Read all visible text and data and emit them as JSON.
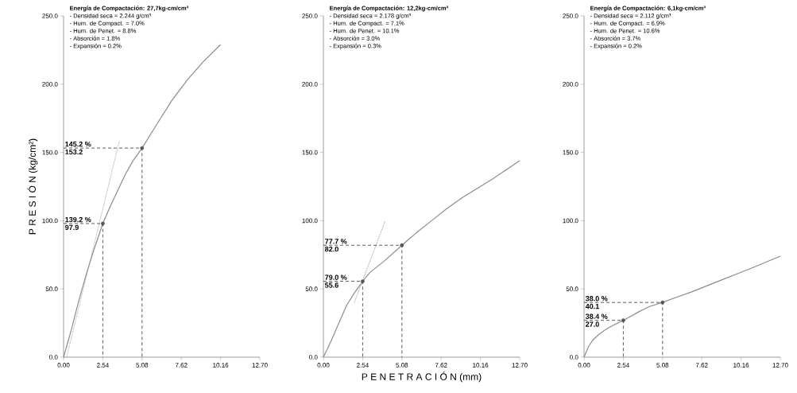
{
  "chart_data": [
    {
      "type": "line",
      "title": "Energía de Compactación: 27,7kg-cm/cm³",
      "ylabel": "P R E S I Ó N   (kg/cm²)",
      "xlim": [
        0,
        12.7
      ],
      "ylim": [
        0,
        250
      ],
      "xticks": [
        {
          "value": 0,
          "label": "0.00"
        },
        {
          "value": 2.54,
          "label": "2.54"
        },
        {
          "value": 5.08,
          "label": "5.08"
        },
        {
          "value": 7.62,
          "label": "7.62"
        },
        {
          "value": 10.16,
          "label": "10.16"
        },
        {
          "value": 12.7,
          "label": "12.70"
        }
      ],
      "yticks": [
        {
          "value": 0,
          "label": "0.0"
        },
        {
          "value": 50,
          "label": "50.0"
        },
        {
          "value": 100,
          "label": "100.0"
        },
        {
          "value": 150,
          "label": "150.0"
        },
        {
          "value": 200,
          "label": "200.0"
        },
        {
          "value": 250,
          "label": "250.0"
        }
      ],
      "grid": false,
      "series": [
        {
          "type": "line",
          "color": "#8c8c8c",
          "line_style": "solid",
          "x": [
            0,
            0.5,
            1,
            1.5,
            2,
            2.54,
            3,
            3.5,
            4,
            4.5,
            5.08,
            6,
            7,
            8,
            9,
            10.16
          ],
          "values": [
            0,
            20,
            42,
            62,
            80,
            97.9,
            110,
            122,
            134,
            144,
            153.2,
            170,
            188,
            203,
            216,
            229
          ]
        },
        {
          "type": "line",
          "color": "#a0a0a0",
          "line_style": "dotted",
          "x": [
            0.2,
            3.6
          ],
          "values": [
            0,
            158
          ]
        },
        {
          "type": "line",
          "color": "#333333",
          "line_style": "dashed",
          "x": [
            0,
            2.54,
            2.54
          ],
          "values": [
            97.9,
            97.9,
            0
          ]
        },
        {
          "type": "line",
          "color": "#333333",
          "line_style": "dashed",
          "x": [
            0,
            5.08,
            5.08
          ],
          "values": [
            153.2,
            153.2,
            0
          ]
        },
        {
          "type": "scatter",
          "color": "#555555",
          "marker": "circle",
          "x": [
            2.54,
            5.08
          ],
          "values": [
            97.9,
            153.2
          ]
        }
      ],
      "annotations": [
        "- Densidad seca = 2.244 g/cm³",
        "- Hum. de Compact. = 7.0%",
        "- Hum. de Penet. = 8.8%",
        "- Absorción = 1.8%",
        "- Expansión = 0.2%",
        {
          "text": "145.2 %",
          "y": 153.2
        },
        {
          "text": "153.2",
          "y": 153.2
        },
        {
          "text": "139.2 %",
          "y": 97.9
        },
        {
          "text": "97.9",
          "y": 97.9
        }
      ]
    },
    {
      "type": "line",
      "title": "Energía de Compactación: 12,2kg-cm/cm³",
      "xlabel": "P E N E T R A C I Ó N   (mm)",
      "xlim": [
        0,
        12.7
      ],
      "ylim": [
        0,
        250
      ],
      "xticks": [
        {
          "value": 0,
          "label": "0.00"
        },
        {
          "value": 2.54,
          "label": "2.54"
        },
        {
          "value": 5.08,
          "label": "5.08"
        },
        {
          "value": 7.62,
          "label": "7.62"
        },
        {
          "value": 10.16,
          "label": "10.16"
        },
        {
          "value": 12.7,
          "label": "12.70"
        }
      ],
      "yticks": [
        {
          "value": 0,
          "label": "0.0"
        },
        {
          "value": 50,
          "label": "50.0"
        },
        {
          "value": 100,
          "label": "100.0"
        },
        {
          "value": 150,
          "label": "150.0"
        },
        {
          "value": 200,
          "label": "200.0"
        },
        {
          "value": 250,
          "label": "250.0"
        }
      ],
      "grid": false,
      "series": [
        {
          "type": "line",
          "color": "#8c8c8c",
          "line_style": "solid",
          "x": [
            0,
            0.5,
            1,
            1.5,
            2,
            2.54,
            3,
            4,
            5.08,
            6,
            7,
            8,
            9,
            10,
            11,
            12.7
          ],
          "values": [
            0,
            12,
            25,
            38,
            47,
            55.6,
            62,
            71,
            82,
            91,
            100,
            109,
            117,
            124,
            131,
            144
          ]
        },
        {
          "type": "line",
          "color": "#8a8a8a",
          "line_style": "dotted",
          "x": [
            2.0,
            4.0
          ],
          "values": [
            40,
            100
          ]
        },
        {
          "type": "line",
          "color": "#333333",
          "line_style": "dashed",
          "x": [
            0,
            2.54,
            2.54
          ],
          "values": [
            55.6,
            55.6,
            0
          ]
        },
        {
          "type": "line",
          "color": "#333333",
          "line_style": "dashed",
          "x": [
            0,
            5.08,
            5.08
          ],
          "values": [
            82.0,
            82.0,
            0
          ]
        },
        {
          "type": "scatter",
          "color": "#555555",
          "marker": "circle",
          "x": [
            2.54,
            5.08
          ],
          "values": [
            55.6,
            82.0
          ]
        }
      ],
      "annotations": [
        "- Densidad seca = 2.178 g/cm³",
        "- Hum. de Compact. = 7.1%",
        "- Hum. de Penet. = 10.1%",
        "- Absorción = 3.0%",
        "- Expansión = 0.3%",
        {
          "text": "77.7 %",
          "y": 82.0
        },
        {
          "text": "82.0",
          "y": 82.0
        },
        {
          "text": "79.0 %",
          "y": 55.6
        },
        {
          "text": "55.6",
          "y": 55.6
        }
      ]
    },
    {
      "type": "line",
      "title": "Energía de Compactación: 6,1kg-cm/cm³",
      "xlim": [
        0,
        12.7
      ],
      "ylim": [
        0,
        250
      ],
      "xticks": [
        {
          "value": 0,
          "label": "0.00"
        },
        {
          "value": 2.54,
          "label": "2.54"
        },
        {
          "value": 5.08,
          "label": "5.08"
        },
        {
          "value": 7.62,
          "label": "7.62"
        },
        {
          "value": 10.16,
          "label": "10.16"
        },
        {
          "value": 12.7,
          "label": "12.70"
        }
      ],
      "yticks": [
        {
          "value": 0,
          "label": "0.0"
        },
        {
          "value": 50,
          "label": "50.0"
        },
        {
          "value": 100,
          "label": "100.0"
        },
        {
          "value": 150,
          "label": "150.0"
        },
        {
          "value": 200,
          "label": "200.0"
        },
        {
          "value": 250,
          "label": "250.0"
        }
      ],
      "grid": false,
      "series": [
        {
          "type": "line",
          "color": "#8c8c8c",
          "line_style": "solid",
          "x": [
            0,
            0.3,
            0.6,
            1,
            1.5,
            2,
            2.54,
            3.5,
            4.2,
            5.08,
            6,
            7,
            8,
            9,
            10,
            11,
            12.7
          ],
          "values": [
            0,
            8,
            13,
            17,
            21,
            24,
            27.0,
            33,
            37,
            40.1,
            44,
            48,
            52.5,
            57,
            61.5,
            66,
            74
          ]
        },
        {
          "type": "line",
          "color": "#333333",
          "line_style": "dashed",
          "x": [
            0,
            2.54,
            2.54
          ],
          "values": [
            27.0,
            27.0,
            0
          ]
        },
        {
          "type": "line",
          "color": "#333333",
          "line_style": "dashed",
          "x": [
            0,
            5.08,
            5.08
          ],
          "values": [
            40.1,
            40.1,
            0
          ]
        },
        {
          "type": "scatter",
          "color": "#555555",
          "marker": "circle",
          "x": [
            2.54,
            5.08
          ],
          "values": [
            27.0,
            40.1
          ]
        }
      ],
      "annotations": [
        "- Densidad seca = 2.112 g/cm³",
        "- Hum. de Compact. = 6.9%",
        "- Hum. de Penet. = 10.6%",
        "- Absorción = 3.7%",
        "- Expansión = 0.2%",
        {
          "text": "38.0 %",
          "y": 40.1
        },
        {
          "text": "40.1",
          "y": 40.1
        },
        {
          "text": "38.4 %",
          "y": 27.0
        },
        {
          "text": "27.0",
          "y": 27.0
        }
      ]
    }
  ]
}
